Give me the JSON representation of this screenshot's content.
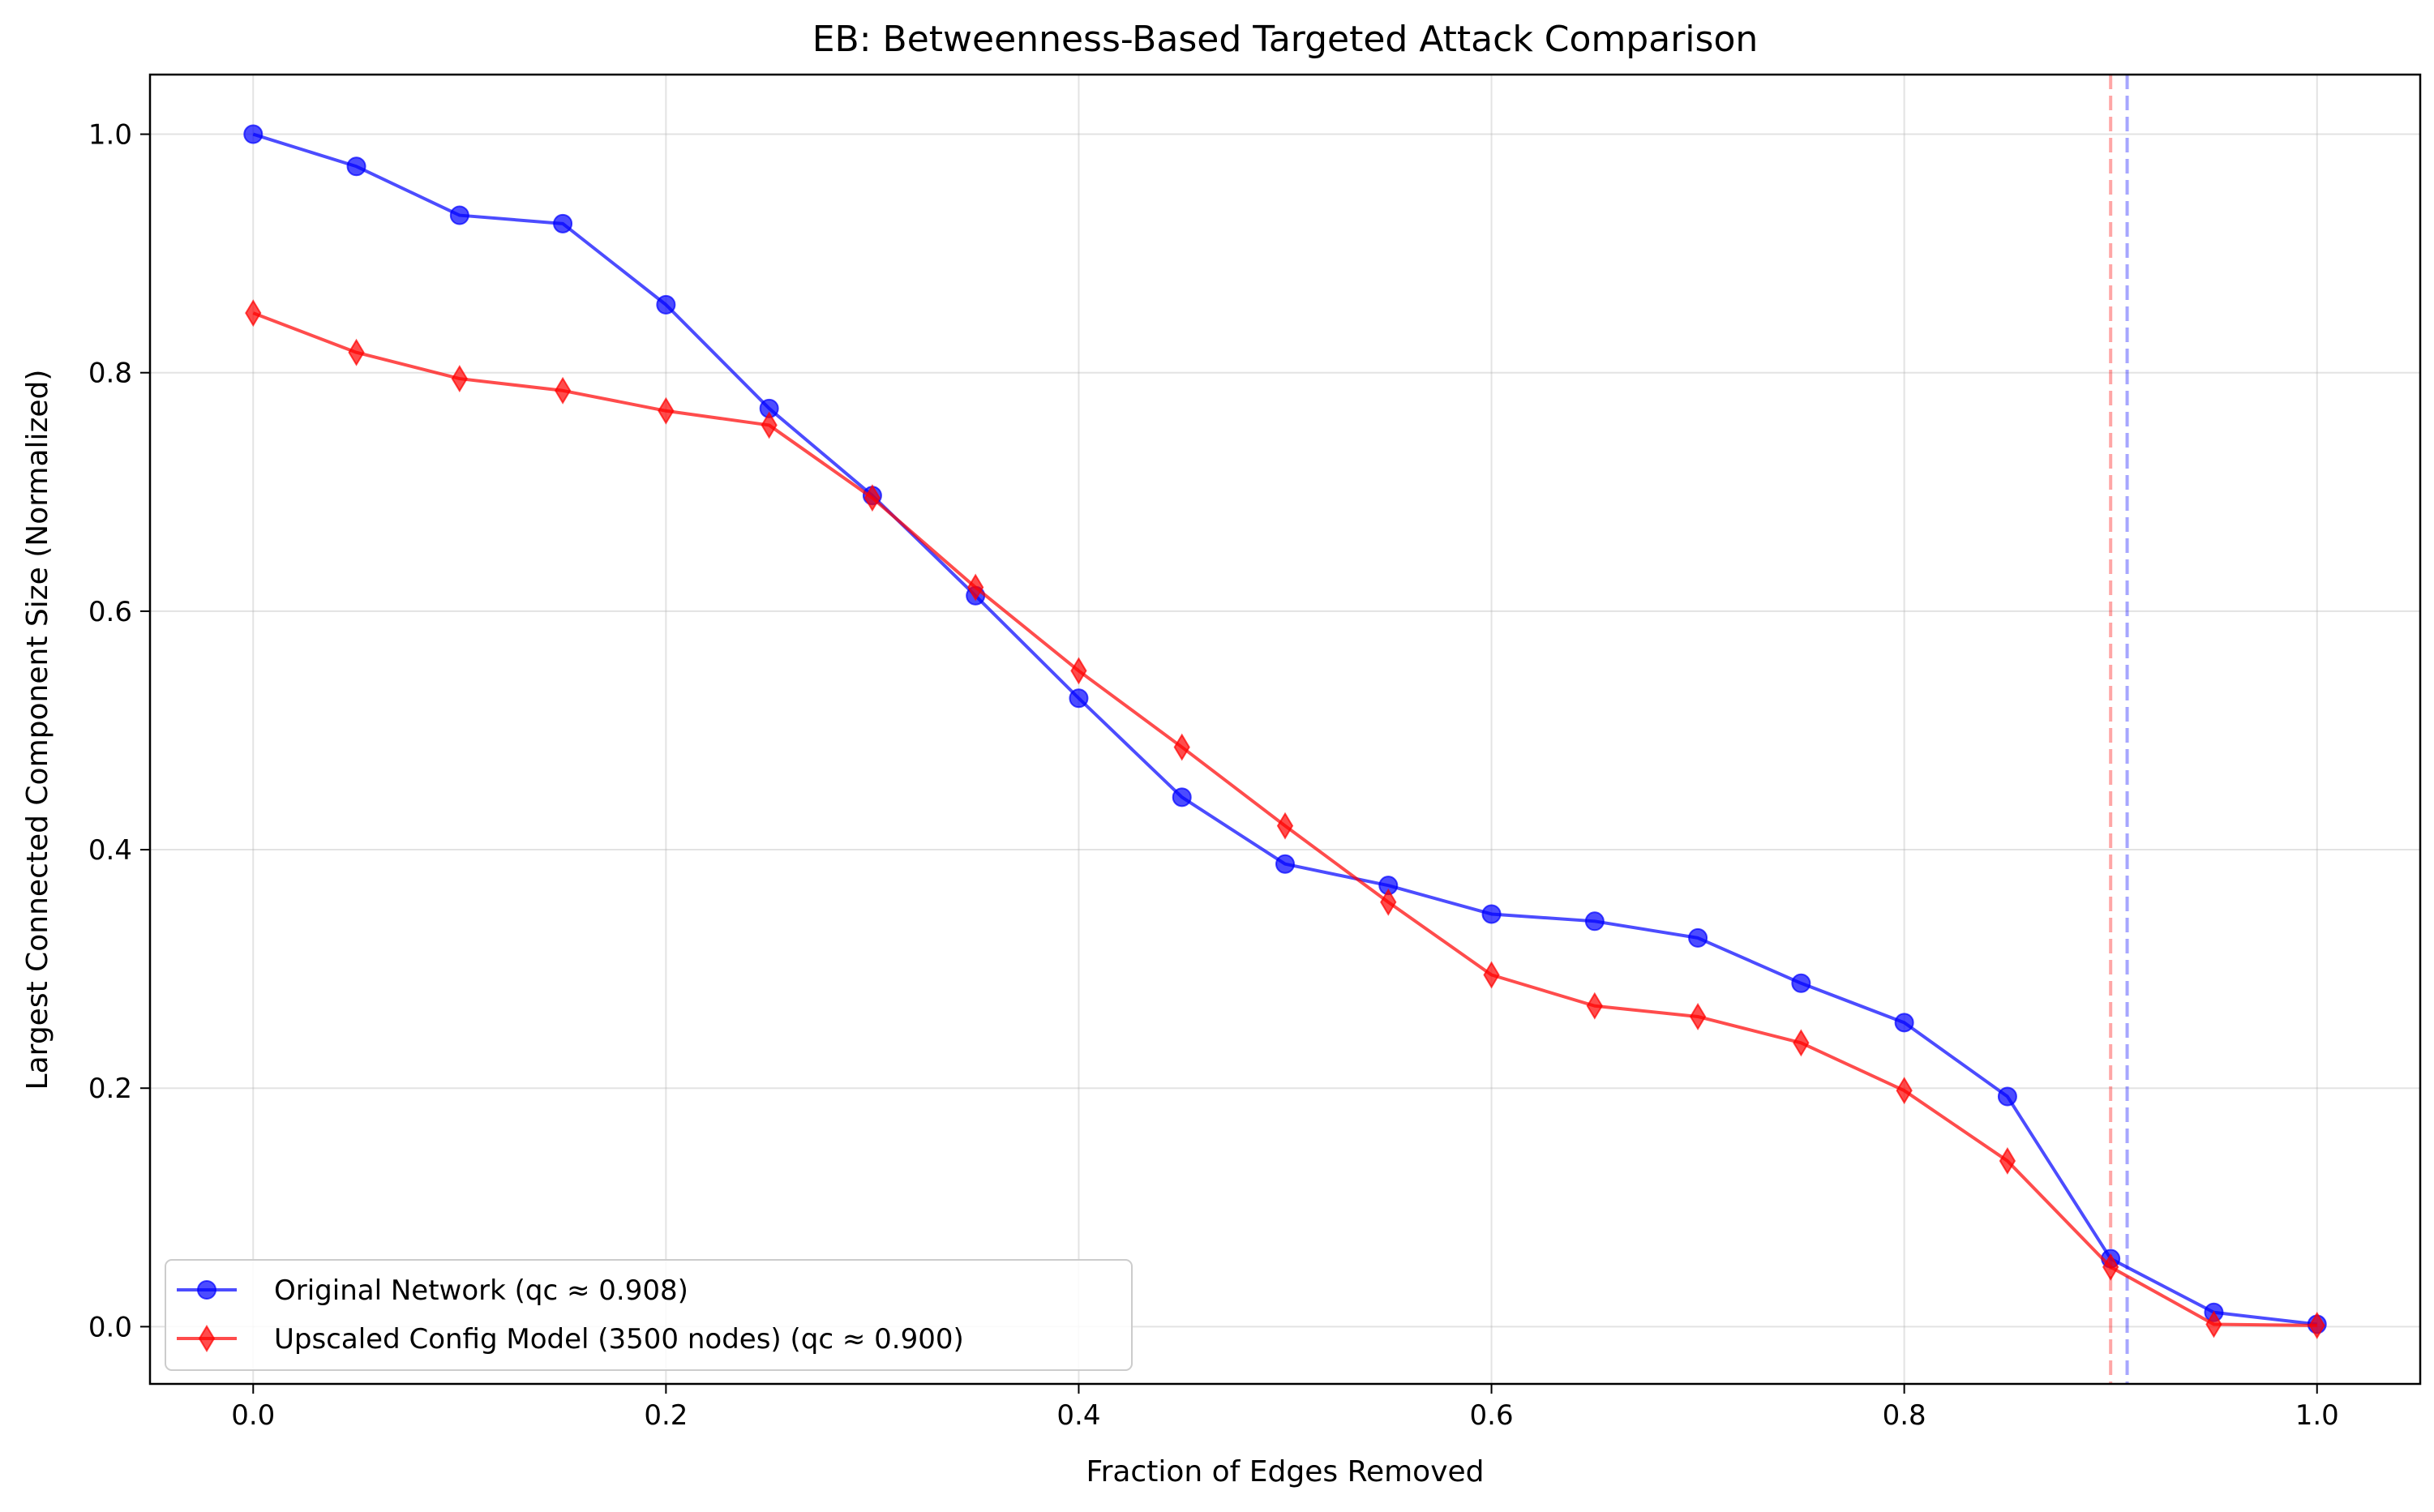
{
  "chart_data": {
    "type": "line",
    "title": "EB: Betweenness-Based Targeted Attack Comparison",
    "xlabel": "Fraction of Edges Removed",
    "ylabel": "Largest Connected Component Size (Normalized)",
    "xlim": [
      -0.05,
      1.05
    ],
    "ylim": [
      -0.048,
      1.05
    ],
    "xticks": [
      0.0,
      0.2,
      0.4,
      0.6,
      0.8,
      1.0
    ],
    "xtick_labels": [
      "0.0",
      "0.2",
      "0.4",
      "0.6",
      "0.8",
      "1.0"
    ],
    "yticks": [
      0.0,
      0.2,
      0.4,
      0.6,
      0.8,
      1.0
    ],
    "ytick_labels": [
      "0.0",
      "0.2",
      "0.4",
      "0.6",
      "0.8",
      "1.0"
    ],
    "grid": true,
    "legend_position": "lower-left",
    "x": [
      0.0,
      0.05,
      0.1,
      0.15,
      0.2,
      0.25,
      0.3,
      0.35,
      0.4,
      0.45,
      0.5,
      0.55,
      0.6,
      0.65,
      0.7,
      0.75,
      0.8,
      0.85,
      0.9,
      0.95,
      1.0
    ],
    "series": [
      {
        "name": "Original Network (qc ≈ 0.908)",
        "color": "#0000ff",
        "marker": "circle",
        "values": [
          1.0,
          0.973,
          0.932,
          0.925,
          0.857,
          0.77,
          0.697,
          0.613,
          0.527,
          0.444,
          0.388,
          0.37,
          0.346,
          0.34,
          0.326,
          0.288,
          0.255,
          0.193,
          0.057,
          0.012,
          0.002
        ]
      },
      {
        "name": "Upscaled Config Model (3500 nodes) (qc ≈ 0.900)",
        "color": "#ff0000",
        "marker": "diamond",
        "values": [
          0.85,
          0.817,
          0.795,
          0.785,
          0.768,
          0.756,
          0.695,
          0.62,
          0.55,
          0.486,
          0.42,
          0.356,
          0.295,
          0.269,
          0.26,
          0.238,
          0.198,
          0.139,
          0.05,
          0.002,
          0.001
        ]
      }
    ],
    "threshold_lines": [
      {
        "x": 0.9,
        "color": "#ff0000",
        "style": "dashed"
      },
      {
        "x": 0.908,
        "color": "#0000ff",
        "style": "dashed"
      }
    ]
  }
}
